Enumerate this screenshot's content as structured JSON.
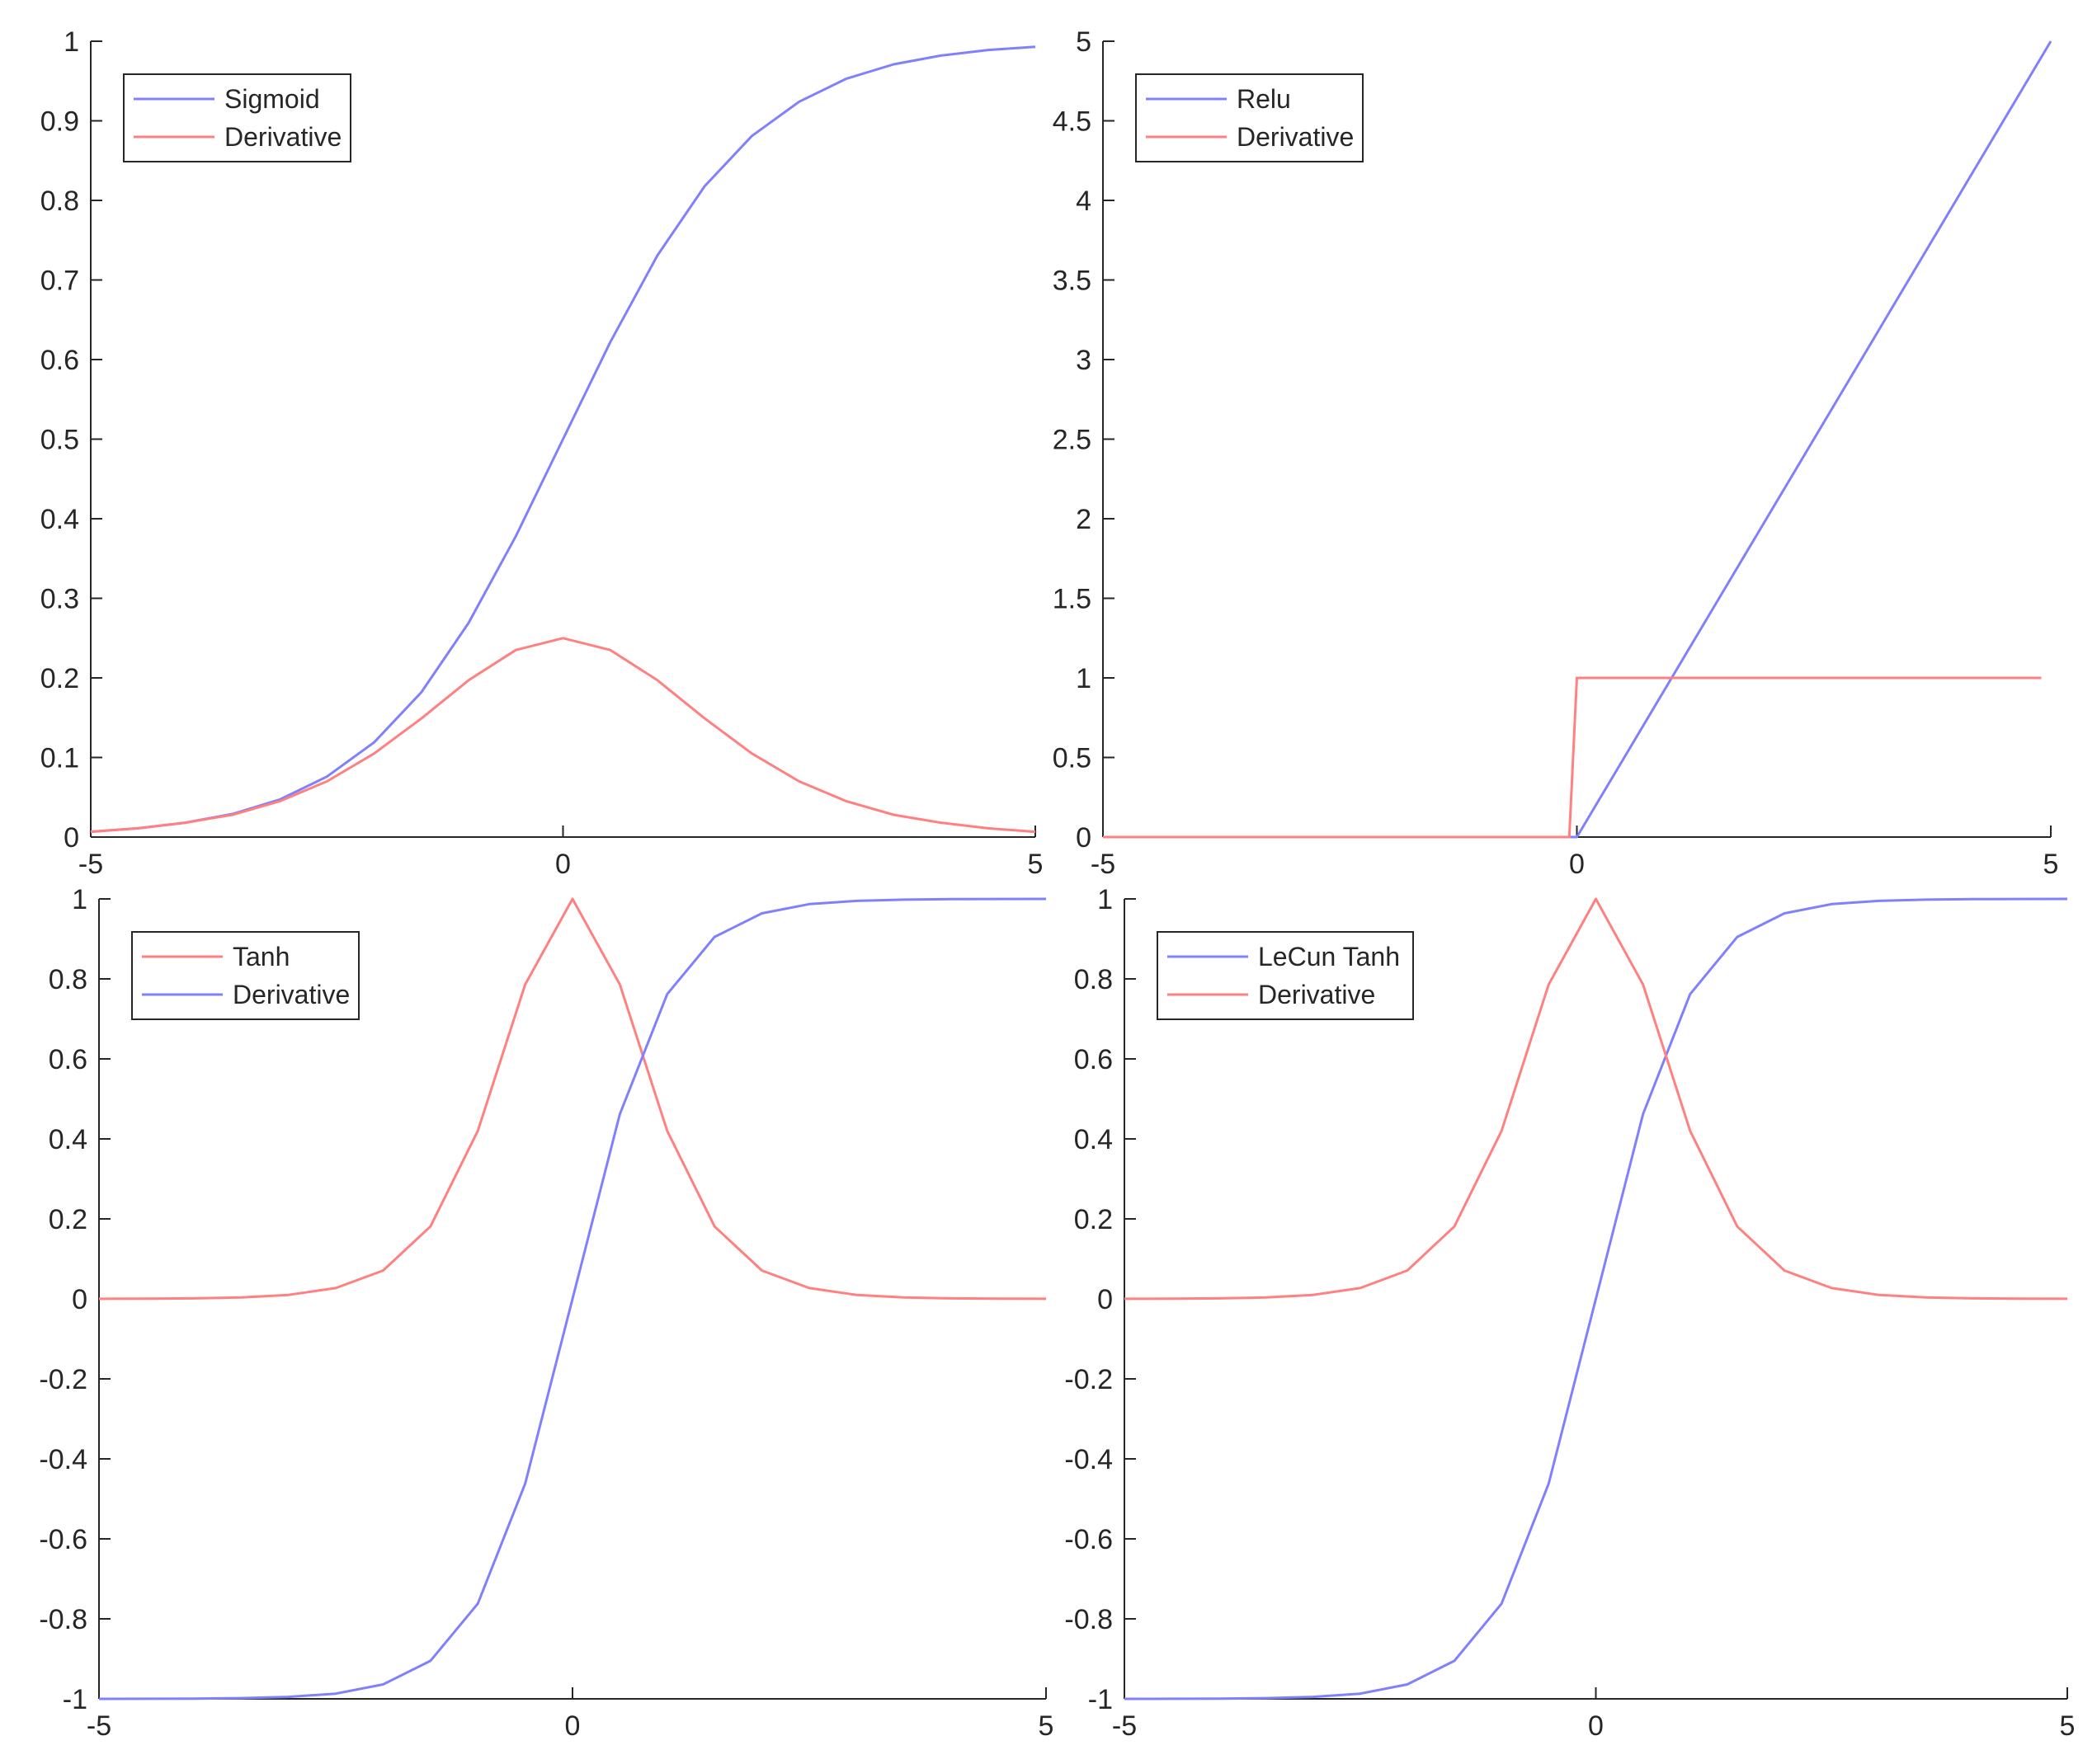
{
  "colors": {
    "blue": "#8080ff",
    "red": "#ff8080",
    "axis": "#262626"
  },
  "chart_data": [
    {
      "type": "line",
      "xlim": [
        -5,
        5
      ],
      "ylim": [
        0,
        1
      ],
      "xticks": [
        "-5",
        "0",
        "5"
      ],
      "yticks": [
        "0",
        "0.1",
        "0.2",
        "0.3",
        "0.4",
        "0.5",
        "0.6",
        "0.7",
        "0.8",
        "0.9",
        "1"
      ],
      "legend_position": "top-left",
      "series": [
        {
          "name": "Sigmoid",
          "color": "blue",
          "x": [
            -5,
            -4.5,
            -4,
            -3.5,
            -3,
            -2.5,
            -2,
            -1.5,
            -1,
            -0.5,
            0,
            0.5,
            1,
            1.5,
            2,
            2.5,
            3,
            3.5,
            4,
            4.5,
            5
          ],
          "y": [
            0.0067,
            0.011,
            0.018,
            0.029,
            0.047,
            0.076,
            0.119,
            0.182,
            0.269,
            0.378,
            0.5,
            0.622,
            0.731,
            0.818,
            0.881,
            0.924,
            0.953,
            0.971,
            0.982,
            0.989,
            0.993
          ]
        },
        {
          "name": "Derivative",
          "color": "red",
          "x": [
            -5,
            -4.5,
            -4,
            -3.5,
            -3,
            -2.5,
            -2,
            -1.5,
            -1,
            -0.5,
            0,
            0.5,
            1,
            1.5,
            2,
            2.5,
            3,
            3.5,
            4,
            4.5,
            5
          ],
          "y": [
            0.0066,
            0.011,
            0.018,
            0.028,
            0.045,
            0.07,
            0.105,
            0.149,
            0.197,
            0.235,
            0.25,
            0.235,
            0.197,
            0.149,
            0.105,
            0.07,
            0.045,
            0.028,
            0.018,
            0.011,
            0.0066
          ]
        }
      ]
    },
    {
      "type": "line",
      "xlim": [
        -5,
        5
      ],
      "ylim": [
        0,
        5
      ],
      "xticks": [
        "-5",
        "0",
        "5"
      ],
      "yticks": [
        "0",
        "0.5",
        "1",
        "1.5",
        "2",
        "2.5",
        "3",
        "3.5",
        "4",
        "4.5",
        "5"
      ],
      "legend_position": "top-left",
      "series": [
        {
          "name": "Relu",
          "color": "blue",
          "x": [
            -5,
            0,
            5
          ],
          "y": [
            0,
            0,
            5
          ]
        },
        {
          "name": "Derivative",
          "color": "red",
          "x": [
            -5,
            -0.08,
            0,
            4.9
          ],
          "y": [
            0,
            0,
            1,
            1
          ]
        }
      ]
    },
    {
      "type": "line",
      "xlim": [
        -5,
        5
      ],
      "ylim": [
        -1,
        1
      ],
      "xticks": [
        "-5",
        "0",
        "5"
      ],
      "yticks": [
        "-1",
        "-0.8",
        "-0.6",
        "-0.4",
        "-0.2",
        "0",
        "0.2",
        "0.4",
        "0.6",
        "0.8",
        "1"
      ],
      "legend_position": "top-left",
      "series": [
        {
          "name": "Tanh",
          "color": "red",
          "x": [
            -5,
            -4.5,
            -4,
            -3.5,
            -3,
            -2.5,
            -2,
            -1.5,
            -1,
            -0.5,
            0,
            0.5,
            1,
            1.5,
            2,
            2.5,
            3,
            3.5,
            4,
            4.5,
            5
          ],
          "y": [
            0.0002,
            0.0005,
            0.0013,
            0.0036,
            0.0099,
            0.027,
            0.071,
            0.181,
            0.42,
            0.786,
            1,
            0.786,
            0.42,
            0.181,
            0.071,
            0.027,
            0.0099,
            0.0036,
            0.0013,
            0.0005,
            0.0002
          ]
        },
        {
          "name": "Derivative",
          "color": "blue",
          "x": [
            -5,
            -4.5,
            -4,
            -3.5,
            -3,
            -2.5,
            -2,
            -1.5,
            -1,
            -0.5,
            0,
            0.5,
            1,
            1.5,
            2,
            2.5,
            3,
            3.5,
            4,
            4.5,
            5
          ],
          "y": [
            -0.9999,
            -0.9998,
            -0.9993,
            -0.9982,
            -0.995,
            -0.987,
            -0.964,
            -0.905,
            -0.762,
            -0.462,
            0,
            0.462,
            0.762,
            0.905,
            0.964,
            0.987,
            0.995,
            0.9982,
            0.9993,
            0.9998,
            0.9999
          ]
        }
      ]
    },
    {
      "type": "line",
      "xlim": [
        -5,
        5
      ],
      "ylim": [
        -1,
        1
      ],
      "xticks": [
        "-5",
        "0",
        "5"
      ],
      "yticks": [
        "-1",
        "-0.8",
        "-0.6",
        "-0.4",
        "-0.2",
        "0",
        "0.2",
        "0.4",
        "0.6",
        "0.8",
        "1"
      ],
      "legend_position": "top-left",
      "series": [
        {
          "name": "LeCun Tanh",
          "color": "blue",
          "x": [
            -5,
            -4.5,
            -4,
            -3.5,
            -3,
            -2.5,
            -2,
            -1.5,
            -1,
            -0.5,
            0,
            0.5,
            1,
            1.5,
            2,
            2.5,
            3,
            3.5,
            4,
            4.5,
            5
          ],
          "y": [
            -0.9999,
            -0.9998,
            -0.9993,
            -0.9982,
            -0.995,
            -0.987,
            -0.964,
            -0.905,
            -0.762,
            -0.462,
            0,
            0.462,
            0.762,
            0.905,
            0.964,
            0.987,
            0.995,
            0.9982,
            0.9993,
            0.9998,
            0.9999
          ]
        },
        {
          "name": "Derivative",
          "color": "red",
          "x": [
            -5,
            -4.5,
            -4,
            -3.5,
            -3,
            -2.5,
            -2,
            -1.5,
            -1,
            -0.5,
            0,
            0.5,
            1,
            1.5,
            2,
            2.5,
            3,
            3.5,
            4,
            4.5,
            5
          ],
          "y": [
            0.0002,
            0.0005,
            0.0013,
            0.0036,
            0.0099,
            0.027,
            0.071,
            0.181,
            0.42,
            0.786,
            1,
            0.786,
            0.42,
            0.181,
            0.071,
            0.027,
            0.0099,
            0.0036,
            0.0013,
            0.0005,
            0.0002
          ]
        }
      ]
    }
  ]
}
